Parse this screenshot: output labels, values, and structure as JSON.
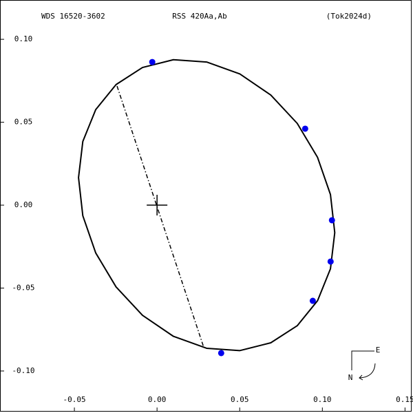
{
  "chart_data": {
    "type": "orbit",
    "title_left": "WDS 16520-3602",
    "title": "RSS 420Aa,Ab",
    "title_right": "(Tok2024d)",
    "xlim": [
      -0.095,
      0.154
    ],
    "ylim": [
      -0.1245,
      0.1237
    ],
    "xticks": [
      -0.05,
      {
        "value": 0,
        "label": "0.00"
      },
      0.05,
      {
        "value": 0.1,
        "label": "0.10"
      },
      0.15
    ],
    "yticks": [
      {
        "value": -0.1,
        "label": "-0.10"
      },
      -0.05,
      {
        "value": 0,
        "label": "0.00"
      },
      0.05,
      {
        "value": 0.1,
        "label": "0.10"
      }
    ],
    "orbit": {
      "color": "#000000",
      "x": [
        0.1075,
        0.1049,
        0.0971,
        0.0848,
        0.0688,
        0.0501,
        0.03,
        0.0099,
        -0.0088,
        -0.0248,
        -0.0371,
        -0.0449,
        -0.0475,
        -0.0449,
        -0.0371,
        -0.0248,
        -0.0088,
        0.0099,
        0.03,
        0.0501,
        0.0688,
        0.0848,
        0.0971,
        0.1049
      ],
      "y": [
        -0.0166,
        -0.0384,
        -0.0576,
        -0.0727,
        -0.083,
        -0.0877,
        -0.0863,
        -0.0791,
        -0.0664,
        -0.0493,
        -0.0288,
        -0.0064,
        0.0166,
        0.0384,
        0.0576,
        0.0727,
        0.083,
        0.0877,
        0.0863,
        0.0791,
        0.0664,
        0.0493,
        0.0288,
        0.0064
      ]
    },
    "nodes_line": {
      "color": "#000000",
      "x": [
        -0.0242,
        0.0283
      ],
      "y": [
        0.0718,
        -0.0859
      ]
    },
    "points": {
      "color": "#0000ee",
      "x": [
        -0.0029,
        0.0896,
        0.1058,
        0.105,
        0.0942,
        0.0388
      ],
      "y": [
        0.0863,
        0.0461,
        -0.0091,
        -0.034,
        -0.0577,
        -0.0892
      ]
    },
    "compass": {
      "east": "E",
      "north": "N"
    }
  }
}
